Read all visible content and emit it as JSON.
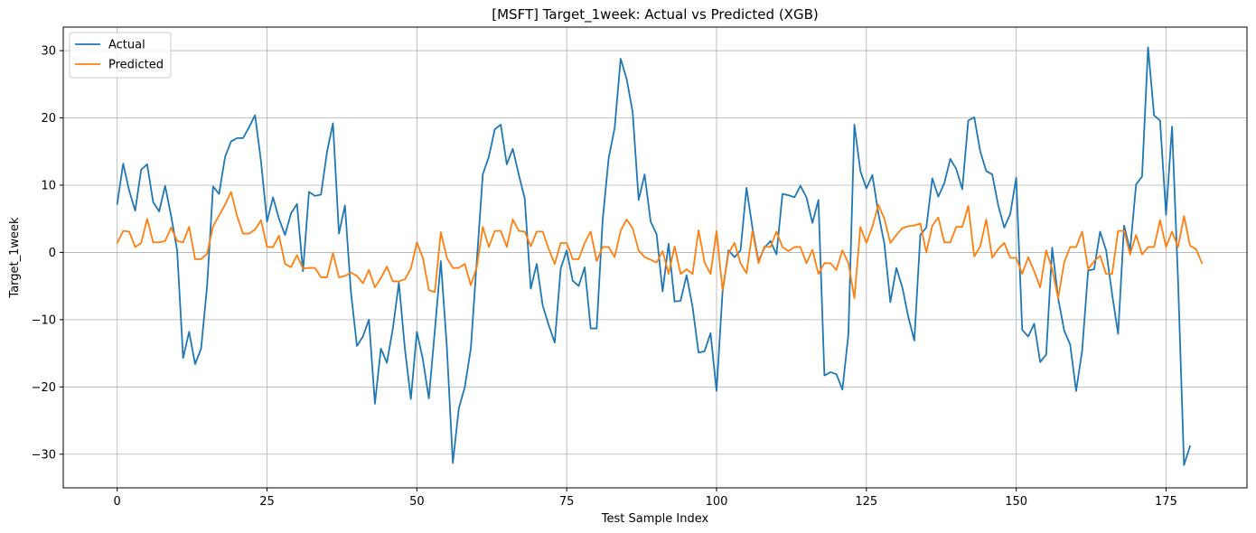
{
  "chart_data": {
    "type": "line",
    "title": "[MSFT] Target_1week: Actual vs Predicted (XGB)",
    "xlabel": "Test Sample Index",
    "ylabel": "Target_1week",
    "xlim": [
      -9,
      188.5
    ],
    "ylim": [
      -35,
      33.5
    ],
    "xticks": [
      0,
      25,
      50,
      75,
      100,
      125,
      150,
      175
    ],
    "yticks": [
      -30,
      -20,
      -10,
      0,
      10,
      20,
      30
    ],
    "grid": true,
    "legend_position": "top-left",
    "series": [
      {
        "name": "Actual",
        "color": "#1f77b4",
        "values": [
          7.2,
          13.2,
          9.2,
          6.2,
          12.3,
          13.1,
          7.5,
          6.1,
          9.9,
          5.4,
          0.3,
          -15.7,
          -11.8,
          -16.6,
          -14.3,
          -5.0,
          9.8,
          8.7,
          14.2,
          16.5,
          17.0,
          17.0,
          18.6,
          20.4,
          13.5,
          4.6,
          8.2,
          5.0,
          2.6,
          5.8,
          7.2,
          -2.8,
          9.0,
          8.4,
          8.6,
          14.9,
          19.2,
          2.8,
          7.0,
          -5.9,
          -13.9,
          -12.5,
          -10.0,
          -22.5,
          -14.3,
          -16.4,
          -11.3,
          -4.5,
          -14.3,
          -21.8,
          -11.8,
          -15.9,
          -21.7,
          -11.6,
          -1.3,
          -14.0,
          -31.3,
          -23.2,
          -20.0,
          -14.3,
          -1.3,
          11.6,
          14.2,
          18.3,
          19.0,
          13.1,
          15.4,
          11.6,
          8.0,
          -5.4,
          -1.7,
          -7.9,
          -10.8,
          -13.4,
          -2.4,
          0.3,
          -4.2,
          -5.0,
          -2.2,
          -11.3,
          -11.3,
          4.8,
          14.0,
          18.5,
          28.8,
          25.8,
          20.9,
          7.8,
          11.6,
          4.6,
          2.7,
          -5.8,
          1.3,
          -7.3,
          -7.2,
          -3.4,
          -8.1,
          -14.9,
          -14.7,
          -12.0,
          -20.6,
          -5.9,
          0.3,
          -0.7,
          0.3,
          9.6,
          3.6,
          -1.3,
          0.7,
          1.7,
          -0.3,
          8.7,
          8.5,
          8.2,
          9.9,
          8.2,
          4.4,
          7.8,
          -18.3,
          -17.8,
          -18.1,
          -20.4,
          -12.2,
          19.0,
          12.1,
          9.5,
          11.5,
          5.8,
          1.3,
          -7.4,
          -2.3,
          -5.2,
          -9.6,
          -13.1,
          2.6,
          3.7,
          11.0,
          8.3,
          10.3,
          13.9,
          12.4,
          9.4,
          19.6,
          20.1,
          15.0,
          12.1,
          11.6,
          7.0,
          3.7,
          5.7,
          11.1,
          -11.5,
          -12.5,
          -10.6,
          -16.3,
          -15.2,
          0.7,
          -6.8,
          -11.6,
          -13.7,
          -20.6,
          -14.6,
          -2.7,
          -2.5,
          3.1,
          0.3,
          -6.2,
          -12.1,
          4.0,
          0.3,
          10.1,
          11.3,
          30.5,
          20.4,
          19.6,
          5.6,
          18.7,
          -4.1,
          -31.6,
          -28.8
        ]
      },
      {
        "name": "Predicted",
        "color": "#ff7f0e",
        "values": [
          1.4,
          3.2,
          3.1,
          0.8,
          1.4,
          5.0,
          1.5,
          1.5,
          1.7,
          3.7,
          1.7,
          1.5,
          3.8,
          -1.0,
          -1.0,
          -0.2,
          3.9,
          5.5,
          7.1,
          9.0,
          5.4,
          2.8,
          2.8,
          3.4,
          4.8,
          0.8,
          0.8,
          2.5,
          -1.7,
          -2.2,
          -0.4,
          -2.4,
          -2.3,
          -2.3,
          -3.7,
          -3.7,
          -0.1,
          -3.7,
          -3.5,
          -3.0,
          -3.5,
          -4.6,
          -2.6,
          -5.2,
          -3.8,
          -2.1,
          -4.3,
          -4.3,
          -4.0,
          -2.4,
          1.5,
          -0.8,
          -5.6,
          -5.9,
          3.0,
          -0.8,
          -2.3,
          -2.3,
          -1.7,
          -4.9,
          -2.2,
          3.8,
          0.8,
          3.2,
          3.2,
          0.8,
          4.9,
          3.2,
          3.1,
          0.9,
          3.1,
          3.1,
          0.5,
          -1.7,
          1.4,
          1.4,
          -1.0,
          -1.0,
          1.4,
          3.1,
          -1.3,
          0.8,
          0.8,
          -0.7,
          3.2,
          4.9,
          3.6,
          0.3,
          -0.7,
          -1.1,
          -1.5,
          0.2,
          -3.2,
          0.9,
          -3.2,
          -2.5,
          -3.2,
          3.3,
          -1.5,
          -3.2,
          3.2,
          -5.6,
          -0.1,
          1.4,
          -1.6,
          -3.1,
          3.2,
          -1.6,
          0.9,
          0.8,
          3.1,
          0.8,
          0.2,
          0.8,
          0.8,
          -1.6,
          0.4,
          -3.2,
          -1.6,
          -1.6,
          -2.6,
          0.3,
          -1.6,
          -6.8,
          3.8,
          1.4,
          3.8,
          7.1,
          5.0,
          1.4,
          2.6,
          3.6,
          3.9,
          4.0,
          4.3,
          0.0,
          4.0,
          5.2,
          1.5,
          1.5,
          3.8,
          3.8,
          6.9,
          -0.6,
          0.9,
          4.9,
          -0.8,
          0.5,
          1.4,
          -0.8,
          -0.8,
          -3.2,
          -0.7,
          -2.8,
          -5.2,
          0.3,
          -2.5,
          -6.8,
          -1.5,
          0.8,
          0.8,
          3.1,
          -2.5,
          -1.3,
          -0.5,
          -3.2,
          -3.2,
          3.2,
          3.2,
          -0.3,
          2.6,
          -0.3,
          0.8,
          0.8,
          4.8,
          0.8,
          3.1,
          0.8,
          5.4,
          1.0,
          0.5,
          -1.6
        ]
      }
    ]
  }
}
